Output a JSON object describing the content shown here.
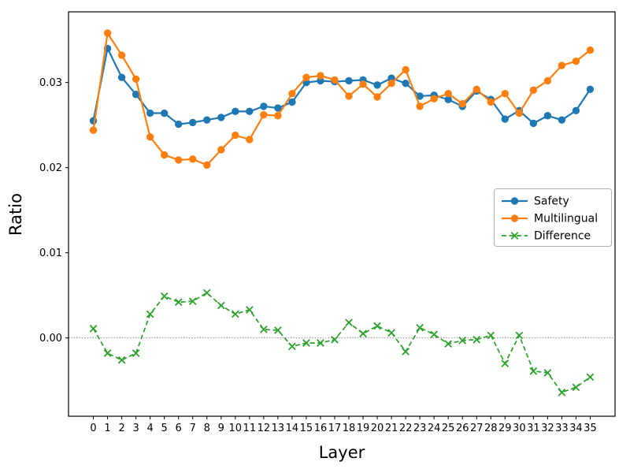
{
  "chart_data": {
    "type": "line",
    "title": "",
    "xlabel": "Layer",
    "ylabel": "Ratio",
    "x": [
      0,
      1,
      2,
      3,
      4,
      5,
      6,
      7,
      8,
      9,
      10,
      11,
      12,
      13,
      14,
      15,
      16,
      17,
      18,
      19,
      20,
      21,
      22,
      23,
      24,
      25,
      26,
      27,
      28,
      29,
      30,
      31,
      32,
      33,
      34,
      35
    ],
    "series": [
      {
        "name": "Safety",
        "color": "#1f77b4",
        "marker": "circle",
        "linestyle": "solid",
        "values": [
          0.0255,
          0.034,
          0.0306,
          0.0286,
          0.0264,
          0.0264,
          0.0251,
          0.0253,
          0.0256,
          0.0259,
          0.0266,
          0.0266,
          0.0272,
          0.027,
          0.0277,
          0.03,
          0.0302,
          0.0301,
          0.0302,
          0.0303,
          0.0297,
          0.0305,
          0.0299,
          0.0284,
          0.0285,
          0.028,
          0.0272,
          0.029,
          0.028,
          0.0257,
          0.0267,
          0.0252,
          0.0261,
          0.0256,
          0.0267,
          0.0292
        ]
      },
      {
        "name": "Multilingual",
        "color": "#ff7f0e",
        "marker": "circle",
        "linestyle": "solid",
        "values": [
          0.0244,
          0.0358,
          0.0332,
          0.0304,
          0.0236,
          0.0215,
          0.0209,
          0.021,
          0.0203,
          0.0221,
          0.0238,
          0.0233,
          0.0262,
          0.0261,
          0.0287,
          0.0306,
          0.0308,
          0.0303,
          0.0284,
          0.0298,
          0.0283,
          0.0299,
          0.0315,
          0.0272,
          0.0281,
          0.0287,
          0.0275,
          0.0292,
          0.0277,
          0.0287,
          0.0264,
          0.0291,
          0.0302,
          0.032,
          0.0325,
          0.0338
        ]
      },
      {
        "name": "Difference",
        "color": "#2ca02c",
        "marker": "x",
        "linestyle": "dashed",
        "values": [
          0.0011,
          -0.0018,
          -0.0026,
          -0.0018,
          0.0028,
          0.0049,
          0.0042,
          0.0043,
          0.0053,
          0.0038,
          0.0028,
          0.0033,
          0.001,
          0.0009,
          -0.001,
          -0.0006,
          -0.0006,
          -0.0002,
          0.0018,
          0.0005,
          0.0014,
          0.0006,
          -0.0016,
          0.0012,
          0.0004,
          -0.0007,
          -0.0003,
          -0.0002,
          0.0003,
          -0.003,
          0.0003,
          -0.0039,
          -0.0041,
          -0.0064,
          -0.0058,
          -0.0046
        ]
      }
    ],
    "y_ticks": [
      0.0,
      0.01,
      0.02,
      0.03
    ],
    "y_tick_labels": [
      "0.00",
      "0.01",
      "0.02",
      "0.03"
    ],
    "xlim": [
      -1.75,
      36.75
    ],
    "ylim": [
      -0.0092,
      0.0383
    ],
    "grid": false,
    "reference_line": {
      "y": 0.0,
      "style": "dotted",
      "color": "#808080"
    },
    "legend": {
      "position": "center-right",
      "frame": true,
      "entries": [
        "Safety",
        "Multilingual",
        "Difference"
      ]
    }
  }
}
